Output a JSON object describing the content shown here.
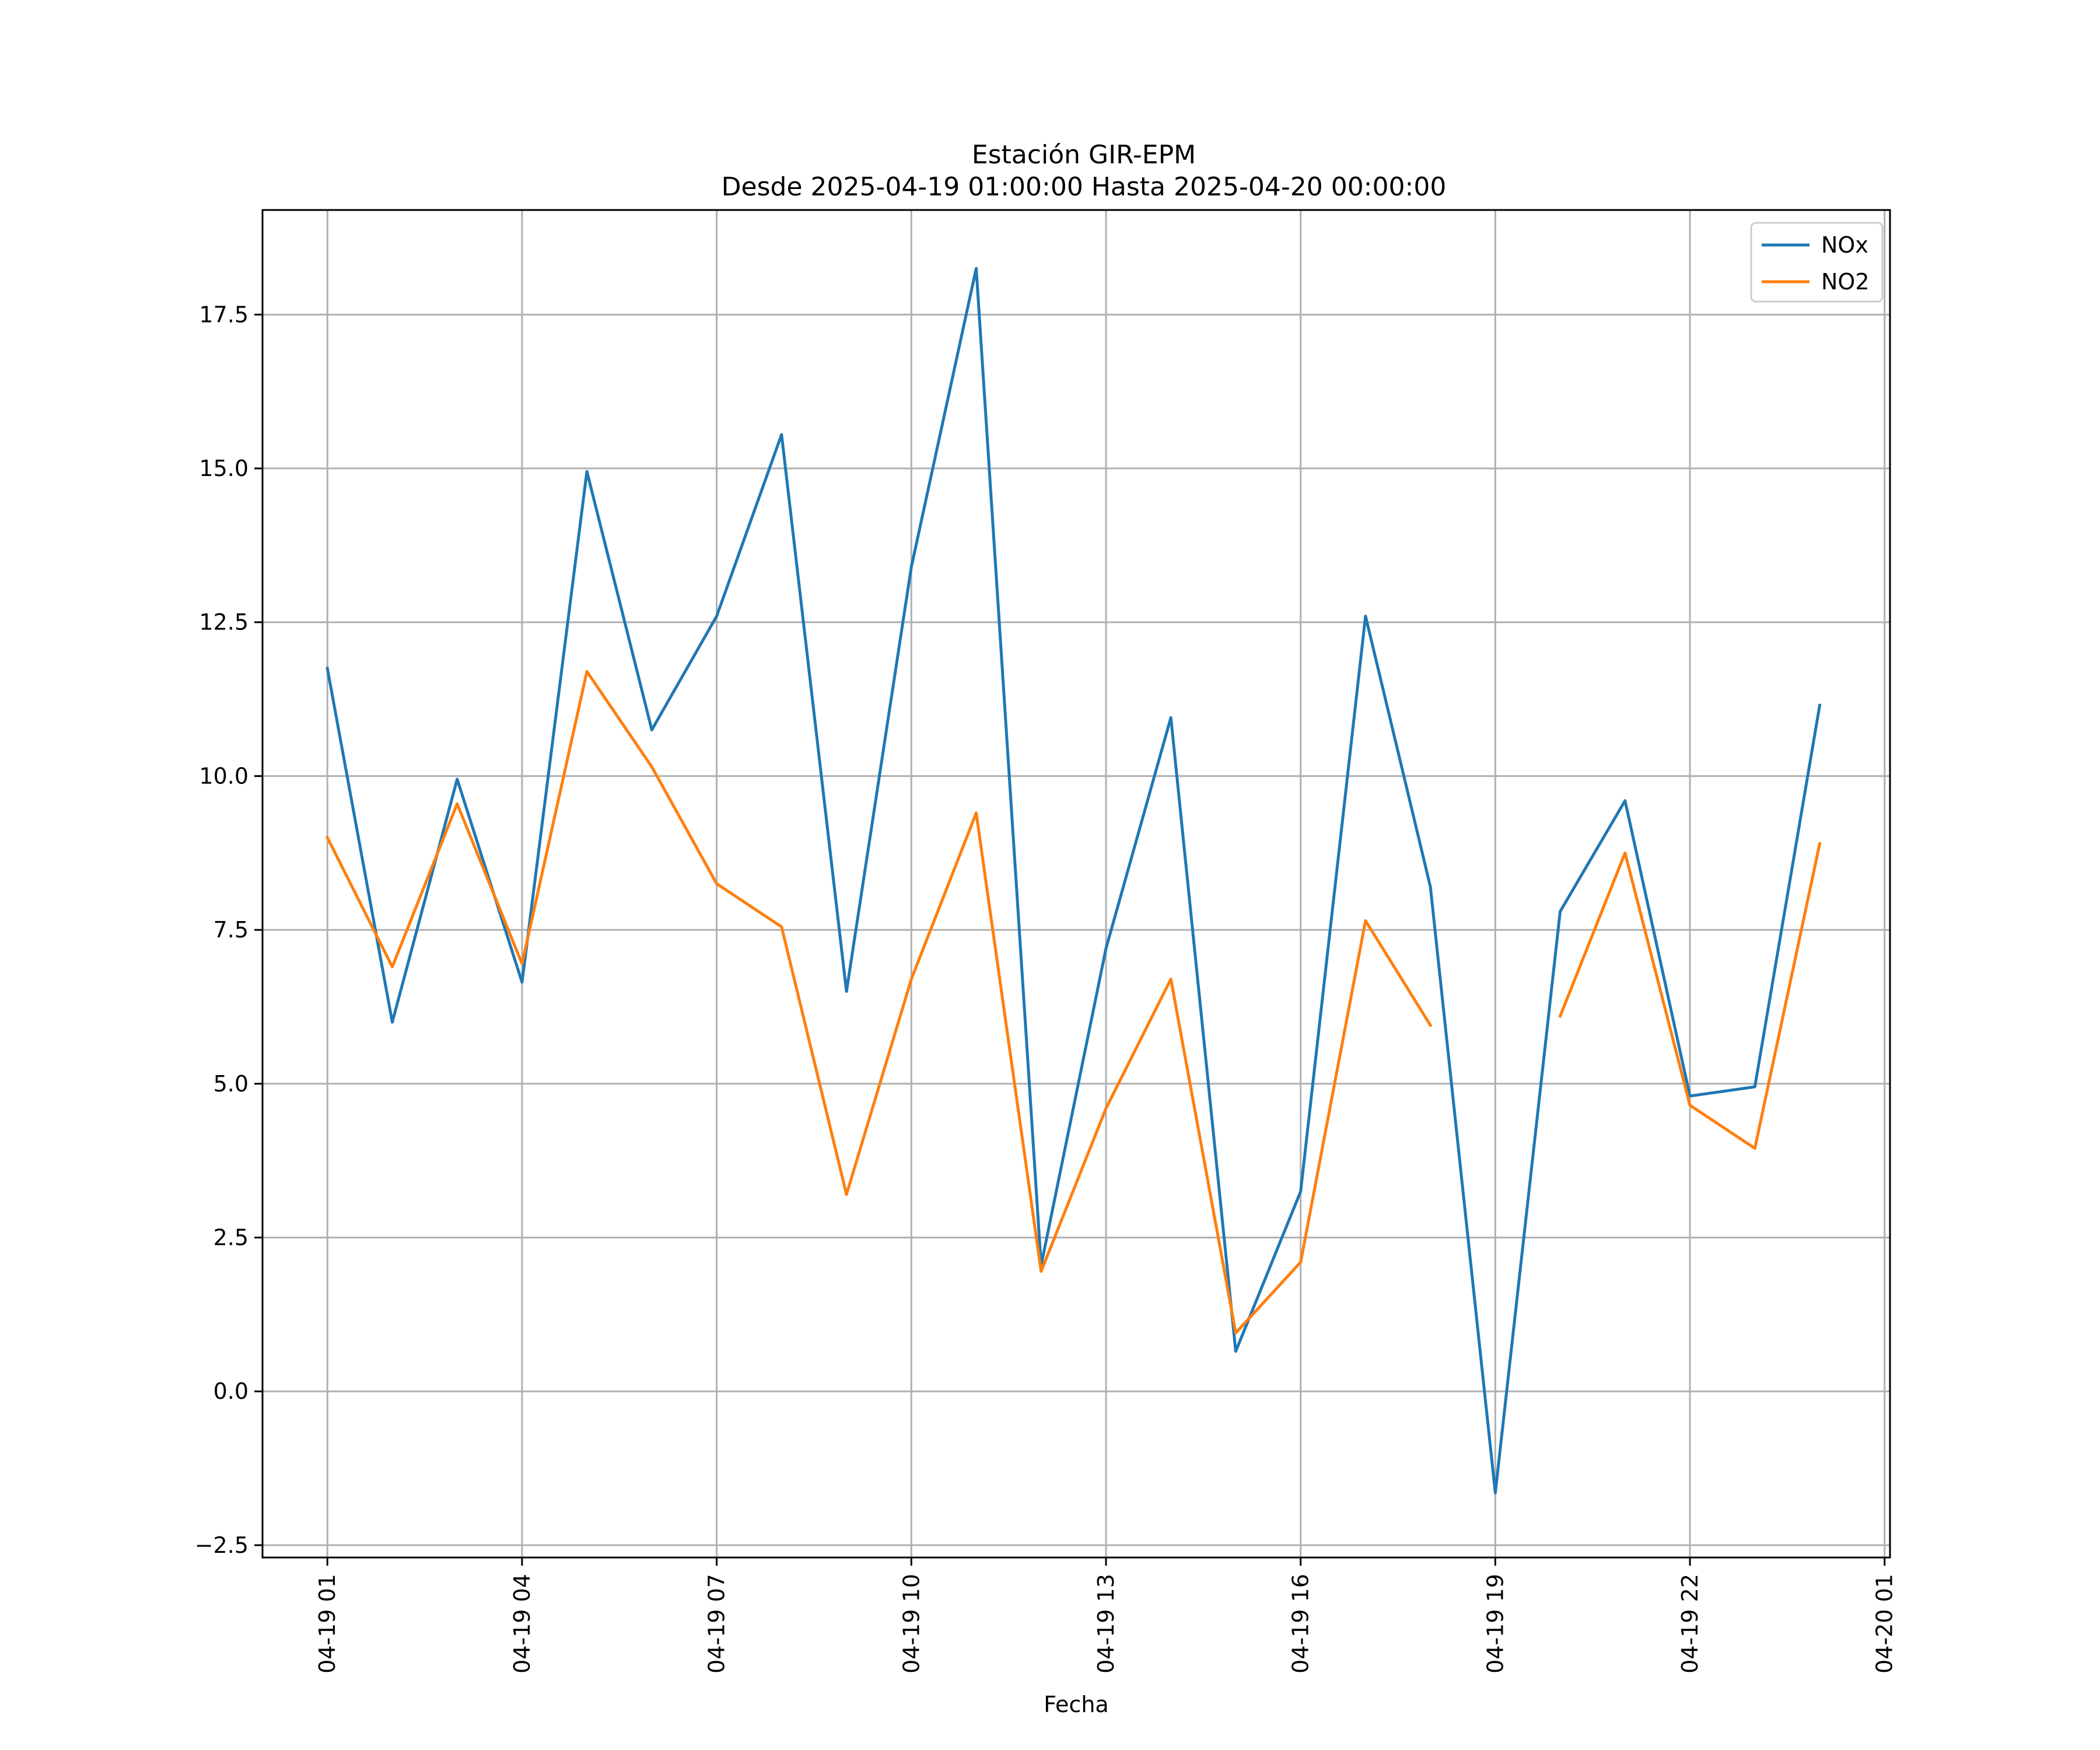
{
  "chart_data": {
    "type": "line",
    "title": "Estación GIR-EPM",
    "subtitle": "Desde 2025-04-19 01:00:00 Hasta 2025-04-20 00:00:00",
    "xlabel": "Fecha",
    "ylabel": "",
    "grid": true,
    "legend_position": "top-right",
    "x": [
      "2025-04-19 01:00",
      "2025-04-19 02:00",
      "2025-04-19 03:00",
      "2025-04-19 04:00",
      "2025-04-19 05:00",
      "2025-04-19 06:00",
      "2025-04-19 07:00",
      "2025-04-19 08:00",
      "2025-04-19 09:00",
      "2025-04-19 10:00",
      "2025-04-19 11:00",
      "2025-04-19 12:00",
      "2025-04-19 13:00",
      "2025-04-19 14:00",
      "2025-04-19 15:00",
      "2025-04-19 16:00",
      "2025-04-19 17:00",
      "2025-04-19 18:00",
      "2025-04-19 19:00",
      "2025-04-19 20:00",
      "2025-04-19 21:00",
      "2025-04-19 22:00",
      "2025-04-19 23:00",
      "2025-04-20 00:00"
    ],
    "xlim": [
      "2025-04-19 00:00",
      "2025-04-20 01:05"
    ],
    "x_ticks": [
      "04-19 01",
      "04-19 04",
      "04-19 07",
      "04-19 10",
      "04-19 13",
      "04-19 16",
      "04-19 19",
      "04-19 22",
      "04-20 01"
    ],
    "ylim": [
      -2.7,
      19.2
    ],
    "y_ticks": [
      -2.5,
      0.0,
      2.5,
      5.0,
      7.5,
      10.0,
      12.5,
      15.0,
      17.5
    ],
    "y_tick_labels": [
      "−2.5",
      "0.0",
      "2.5",
      "5.0",
      "7.5",
      "10.0",
      "12.5",
      "15.0",
      "17.5"
    ],
    "series": [
      {
        "name": "NOx",
        "color": "#1f77b4",
        "values": [
          11.75,
          6.0,
          9.95,
          6.65,
          14.95,
          10.75,
          12.6,
          15.55,
          6.5,
          13.4,
          18.25,
          2.05,
          7.2,
          10.95,
          0.65,
          3.25,
          12.6,
          8.2,
          -1.65,
          7.8,
          9.6,
          4.8,
          4.95,
          11.15
        ]
      },
      {
        "name": "NO2",
        "color": "#ff7f0e",
        "values": [
          9.0,
          6.9,
          9.55,
          6.95,
          11.7,
          10.15,
          8.25,
          7.55,
          3.2,
          6.7,
          9.4,
          1.95,
          4.6,
          6.7,
          0.95,
          2.1,
          7.65,
          5.95,
          null,
          6.1,
          8.75,
          4.65,
          3.95,
          8.9
        ]
      }
    ]
  }
}
